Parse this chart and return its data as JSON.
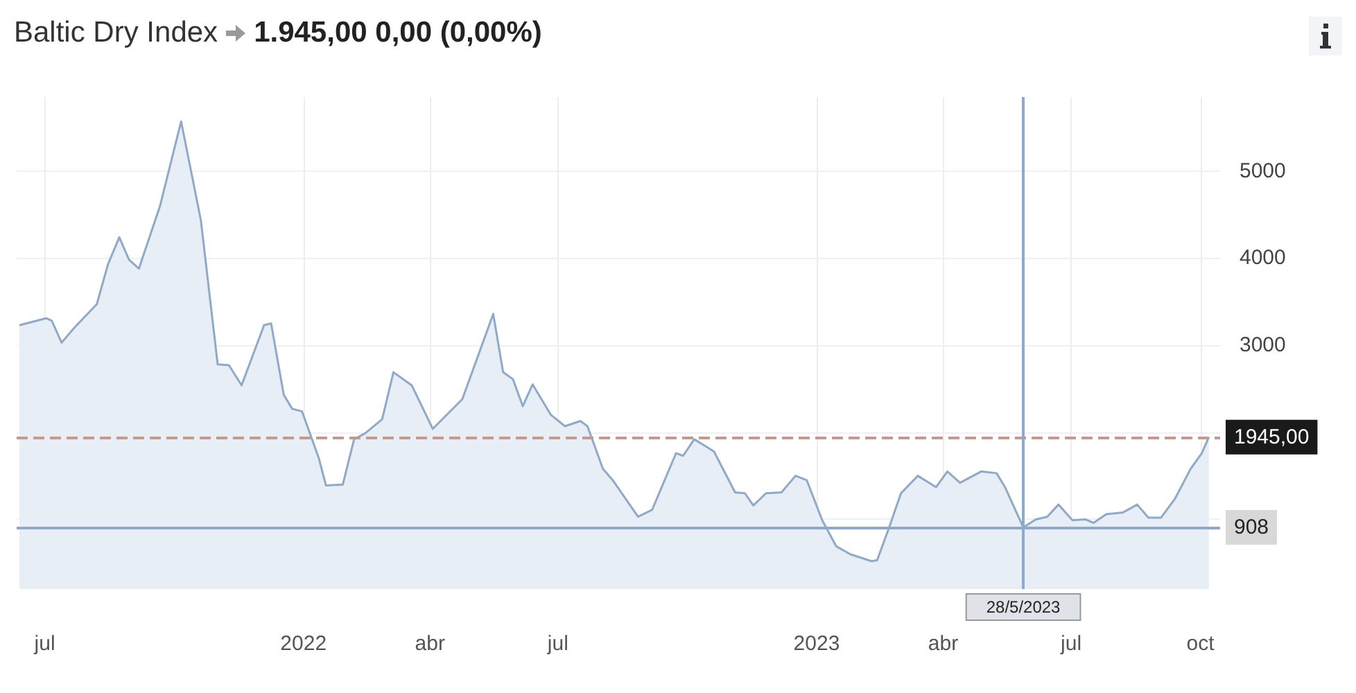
{
  "chart_data": {
    "type": "area",
    "title": "Baltic Dry Index",
    "subtitle": "1.945,00 0,00 (0,00%)",
    "x": [
      "2021-06-13",
      "2021-07-02",
      "2021-07-06",
      "2021-07-13",
      "2021-07-22",
      "2021-08-07",
      "2021-08-15",
      "2021-08-23",
      "2021-08-30",
      "2021-09-06",
      "2021-09-21",
      "2021-10-06",
      "2021-10-20",
      "2021-11-01",
      "2021-11-09",
      "2021-11-18",
      "2021-12-04",
      "2021-12-09",
      "2021-12-18",
      "2021-12-24",
      "2021-12-31",
      "2022-01-12",
      "2022-01-17",
      "2022-01-29",
      "2022-02-06",
      "2022-02-14",
      "2022-02-26",
      "2022-03-06",
      "2022-03-19",
      "2022-04-03",
      "2022-04-24",
      "2022-05-16",
      "2022-05-23",
      "2022-05-30",
      "2022-06-06",
      "2022-06-13",
      "2022-06-26",
      "2022-07-06",
      "2022-07-17",
      "2022-07-22",
      "2022-08-02",
      "2022-08-09",
      "2022-08-27",
      "2022-09-06",
      "2022-09-23",
      "2022-09-28",
      "2022-10-06",
      "2022-10-20",
      "2022-11-04",
      "2022-11-11",
      "2022-11-17",
      "2022-11-26",
      "2022-12-07",
      "2022-12-17",
      "2022-12-25",
      "2023-01-05",
      "2023-01-15",
      "2023-01-25",
      "2023-02-09",
      "2023-02-13",
      "2023-02-21",
      "2023-03-02",
      "2023-03-14",
      "2023-03-27",
      "2023-04-04",
      "2023-04-13",
      "2023-04-28",
      "2023-05-09",
      "2023-05-15",
      "2023-05-28",
      "2023-06-06",
      "2023-06-14",
      "2023-06-22",
      "2023-07-02",
      "2023-07-11",
      "2023-07-17",
      "2023-07-26",
      "2023-08-07",
      "2023-08-17",
      "2023-08-25",
      "2023-09-03",
      "2023-09-13",
      "2023-09-24",
      "2023-10-02",
      "2023-10-07"
    ],
    "series": [
      {
        "color": "#8fa9c8",
        "values": [
          3230,
          3310,
          3280,
          3030,
          3200,
          3470,
          3930,
          4240,
          3980,
          3880,
          4600,
          5570,
          4440,
          2780,
          2770,
          2540,
          3230,
          3250,
          2430,
          2270,
          2240,
          1700,
          1390,
          1400,
          1920,
          1990,
          2150,
          2690,
          2540,
          2040,
          2380,
          3360,
          2690,
          2610,
          2300,
          2550,
          2200,
          2070,
          2130,
          2070,
          1580,
          1450,
          1030,
          1110,
          1760,
          1730,
          1920,
          1780,
          1310,
          1300,
          1160,
          1300,
          1310,
          1500,
          1450,
          990,
          690,
          600,
          520,
          530,
          880,
          1300,
          1500,
          1370,
          1550,
          1420,
          1550,
          1530,
          1370,
          908,
          1000,
          1030,
          1170,
          990,
          1000,
          960,
          1060,
          1080,
          1170,
          1020,
          1020,
          1240,
          1580,
          1760,
          1945
        ]
      }
    ],
    "xlim": [
      "2021-06-11",
      "2023-10-15"
    ],
    "xticks": [
      {
        "value": "2021-07-01",
        "label": "jul"
      },
      {
        "value": "2022-01-01",
        "label": "2022"
      },
      {
        "value": "2022-04-01",
        "label": "abr"
      },
      {
        "value": "2022-07-01",
        "label": "jul"
      },
      {
        "value": "2023-01-01",
        "label": "2023"
      },
      {
        "value": "2023-04-01",
        "label": "abr"
      },
      {
        "value": "2023-07-01",
        "label": "jul"
      },
      {
        "value": "2023-10-01",
        "label": "oct"
      }
    ],
    "ylim": [
      200,
      5850
    ],
    "yticks": [
      {
        "value": 1000,
        "label": null
      },
      {
        "value": 2000,
        "label": null
      },
      3000,
      4000,
      5000
    ],
    "ref_lines": [
      {
        "axis": "y",
        "value": 1945,
        "label": "1945,00",
        "color": "#c49a8f",
        "line_style": "dashed"
      },
      {
        "axis": "y",
        "value": 908,
        "label": "908",
        "color": "#8fa9c8",
        "line_style": "solid"
      },
      {
        "axis": "x",
        "value": "2023-05-28",
        "label": "28/5/2023",
        "color": "#8fa9c8",
        "line_style": "solid"
      }
    ],
    "grid": true,
    "marker": "none"
  }
}
